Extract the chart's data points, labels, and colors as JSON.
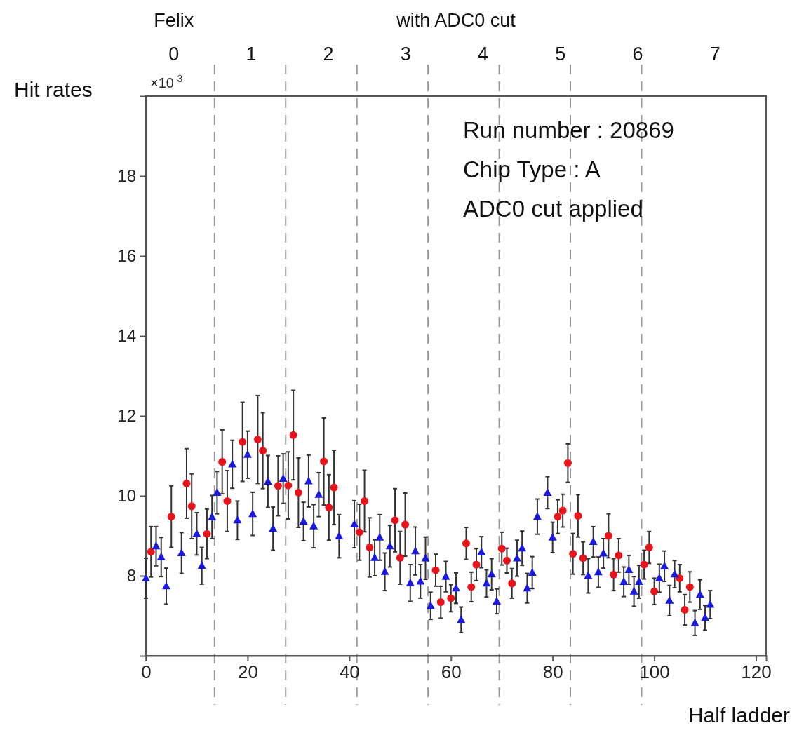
{
  "chart_data": {
    "type": "scatter",
    "title": "with ADC0 cut",
    "xlabel": "Half ladder",
    "ylabel": "Hit rates",
    "x2label": "Felix",
    "annotations": [
      "×10$^{-3}$",
      "Run number : 20869",
      "Chip Type : A",
      "ADC0 cut applied"
    ],
    "xlim": [
      0,
      122
    ],
    "xticks": [
      0,
      20,
      40,
      60,
      80,
      100,
      120
    ],
    "ylim": [
      6,
      20
    ],
    "yticks": [
      8,
      10,
      12,
      14,
      16,
      18
    ],
    "x2lim": [
      -0.36,
      7.66
    ],
    "x2ticks": [
      0,
      1,
      2,
      3,
      4,
      5,
      6,
      7
    ],
    "ref_lines": [
      {
        "axis": "x",
        "value": 13.5,
        "line_style": "dashed",
        "color": "#999999"
      },
      {
        "axis": "x",
        "value": 27.5,
        "line_style": "dashed",
        "color": "#999999"
      },
      {
        "axis": "x",
        "value": 41.5,
        "line_style": "dashed",
        "color": "#999999"
      },
      {
        "axis": "x",
        "value": 55.5,
        "line_style": "dashed",
        "color": "#999999"
      },
      {
        "axis": "x",
        "value": 69.5,
        "line_style": "dashed",
        "color": "#999999"
      },
      {
        "axis": "x",
        "value": 83.5,
        "line_style": "dashed",
        "color": "#999999"
      },
      {
        "axis": "x",
        "value": 97.5,
        "line_style": "dashed",
        "color": "#999999"
      }
    ],
    "series": [
      {
        "color": "#e8141b",
        "marker": "circle",
        "x": [
          1,
          5,
          8,
          9,
          12,
          15,
          16,
          19,
          22,
          23,
          26,
          28,
          29,
          30,
          35,
          36,
          37,
          42,
          43,
          44,
          49,
          50,
          51,
          57,
          58,
          60,
          63,
          64,
          65,
          70,
          71,
          72,
          81,
          82,
          83,
          84,
          85,
          86,
          91,
          92,
          93,
          98,
          99,
          100,
          105,
          106,
          107
        ],
        "values": [
          8.6,
          9.48,
          10.31,
          9.74,
          9.05,
          10.85,
          9.87,
          11.35,
          11.41,
          11.13,
          10.25,
          10.26,
          11.52,
          10.08,
          10.86,
          9.71,
          10.21,
          9.09,
          9.87,
          8.71,
          9.39,
          8.45,
          9.28,
          8.14,
          7.34,
          7.44,
          8.81,
          7.72,
          8.28,
          8.68,
          8.38,
          7.81,
          9.48,
          9.63,
          10.82,
          8.55,
          9.5,
          8.44,
          9.0,
          8.03,
          8.51,
          8.28,
          8.71,
          7.61,
          7.94,
          7.15,
          7.72
        ],
        "errors": [
          0.63,
          0.77,
          0.87,
          0.81,
          0.62,
          0.8,
          0.76,
          0.99,
          1.1,
          0.95,
          0.75,
          0.84,
          1.12,
          0.87,
          1.09,
          0.82,
          0.93,
          0.7,
          0.77,
          0.74,
          0.79,
          0.66,
          0.79,
          0.4,
          0.4,
          0.34,
          0.4,
          0.37,
          0.4,
          0.41,
          0.31,
          0.37,
          0.42,
          0.41,
          0.48,
          0.51,
          0.53,
          0.41,
          0.55,
          0.4,
          0.42,
          0.36,
          0.4,
          0.33,
          0.34,
          0.38,
          0.38
        ]
      },
      {
        "color": "#1a1adf",
        "marker": "triangle",
        "x": [
          0,
          2,
          3,
          4,
          7,
          10,
          11,
          13,
          14,
          17,
          18,
          20,
          21,
          24,
          25,
          27,
          31,
          32,
          33,
          34,
          38,
          41,
          45,
          46,
          47,
          48,
          52,
          53,
          54,
          55,
          56,
          59,
          61,
          62,
          66,
          67,
          68,
          69,
          73,
          74,
          75,
          76,
          77,
          79,
          80,
          87,
          88,
          89,
          90,
          94,
          95,
          96,
          97,
          101,
          102,
          103,
          104,
          108,
          109,
          110,
          111
        ],
        "values": [
          7.94,
          8.74,
          8.47,
          7.74,
          8.57,
          9.05,
          8.25,
          9.47,
          10.08,
          10.79,
          9.39,
          11.03,
          9.55,
          10.36,
          9.18,
          10.43,
          9.36,
          10.37,
          9.24,
          10.03,
          8.99,
          9.29,
          8.45,
          8.96,
          8.1,
          8.74,
          7.82,
          8.62,
          7.86,
          8.44,
          7.25,
          7.98,
          7.69,
          6.9,
          8.59,
          7.81,
          8.04,
          7.36,
          8.44,
          8.69,
          7.69,
          8.08,
          9.48,
          10.08,
          8.96,
          8.0,
          8.85,
          8.09,
          8.56,
          7.85,
          8.15,
          7.61,
          7.85,
          7.94,
          8.24,
          7.38,
          8.04,
          6.82,
          7.53,
          6.95,
          7.28
        ],
        "errors": [
          0.5,
          0.49,
          0.49,
          0.45,
          0.51,
          0.53,
          0.46,
          0.54,
          0.53,
          0.6,
          0.48,
          0.59,
          0.54,
          0.65,
          0.54,
          0.62,
          0.48,
          0.65,
          0.54,
          0.55,
          0.54,
          0.59,
          0.45,
          0.57,
          0.47,
          0.52,
          0.46,
          0.6,
          0.42,
          0.53,
          0.34,
          0.38,
          0.38,
          0.32,
          0.39,
          0.34,
          0.39,
          0.31,
          0.45,
          0.43,
          0.37,
          0.4,
          0.44,
          0.4,
          0.38,
          0.43,
          0.38,
          0.38,
          0.37,
          0.37,
          0.36,
          0.37,
          0.41,
          0.35,
          0.38,
          0.38,
          0.34,
          0.31,
          0.37,
          0.31,
          0.35
        ]
      }
    ]
  }
}
